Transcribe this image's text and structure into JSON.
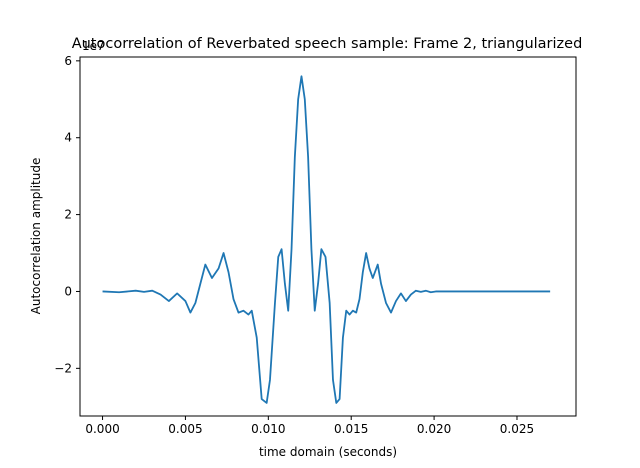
{
  "chart_data": {
    "type": "line",
    "title": "Autocorrelation of Reverbated speech sample: Frame 2, triangularized",
    "xlabel": "time domain (seconds)",
    "ylabel": "Autocorrelation amplitude",
    "y_multiplier_label": "1e7",
    "xlim": [
      -0.00136,
      0.02856
    ],
    "ylim": [
      -3.24,
      6.1
    ],
    "x_ticks": [
      0.0,
      0.005,
      0.01,
      0.015,
      0.02,
      0.025
    ],
    "x_tick_labels": [
      "0.000",
      "0.005",
      "0.010",
      "0.015",
      "0.020",
      "0.025"
    ],
    "y_ticks": [
      -2,
      0,
      2,
      4,
      6
    ],
    "y_tick_labels": [
      "−2",
      "0",
      "2",
      "4",
      "6"
    ],
    "grid": false,
    "series_color": "#1f77b4",
    "series": [
      {
        "x": [
          0.0,
          0.001,
          0.002,
          0.0025,
          0.003,
          0.0035,
          0.004,
          0.0045,
          0.005,
          0.0053,
          0.0056,
          0.0059,
          0.0062,
          0.0066,
          0.007,
          0.0073,
          0.0076,
          0.0079,
          0.0082,
          0.0085,
          0.0088,
          0.009,
          0.0093,
          0.0096,
          0.0099,
          0.0101,
          0.0104,
          0.0106,
          0.0108,
          0.011,
          0.0112,
          0.0114,
          0.0116,
          0.0118,
          0.012,
          0.0122,
          0.0124,
          0.0126,
          0.0128,
          0.013,
          0.0132,
          0.01345,
          0.0137,
          0.0139,
          0.0141,
          0.0143,
          0.0145,
          0.0147,
          0.0149,
          0.0151,
          0.0153,
          0.0155,
          0.0157,
          0.0159,
          0.0161,
          0.0163,
          0.0166,
          0.0168,
          0.0171,
          0.0174,
          0.0177,
          0.018,
          0.0183,
          0.0186,
          0.0189,
          0.0192,
          0.0195,
          0.0198,
          0.0201,
          0.0205,
          0.0208,
          0.0211,
          0.0215,
          0.022,
          0.0225,
          0.023,
          0.0235,
          0.024,
          0.025,
          0.026,
          0.027
        ],
        "y": [
          0.0,
          -0.02,
          0.02,
          -0.01,
          0.02,
          -0.08,
          -0.25,
          -0.05,
          -0.25,
          -0.55,
          -0.3,
          0.2,
          0.7,
          0.35,
          0.6,
          1.0,
          0.5,
          -0.2,
          -0.55,
          -0.5,
          -0.6,
          -0.5,
          -1.2,
          -2.8,
          -2.9,
          -2.3,
          -0.3,
          0.9,
          1.1,
          0.2,
          -0.5,
          1.1,
          3.5,
          5.0,
          5.6,
          5.0,
          3.5,
          1.1,
          -0.5,
          0.2,
          1.1,
          0.9,
          -0.3,
          -2.3,
          -2.9,
          -2.8,
          -1.2,
          -0.5,
          -0.6,
          -0.5,
          -0.55,
          -0.2,
          0.5,
          1.0,
          0.6,
          0.35,
          0.7,
          0.2,
          -0.3,
          -0.55,
          -0.25,
          -0.05,
          -0.25,
          -0.08,
          0.02,
          -0.01,
          0.02,
          -0.02,
          0.0,
          0.0,
          0.0,
          0.0,
          0.0,
          0.0,
          0.0,
          0.0,
          0.0,
          0.0,
          0.0,
          0.0,
          0.0
        ]
      }
    ]
  }
}
